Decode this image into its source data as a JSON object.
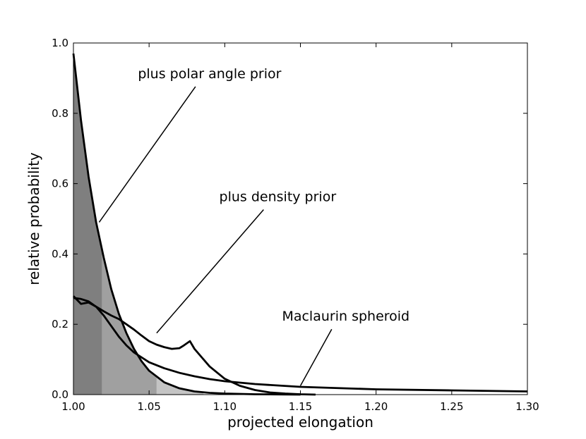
{
  "chart_data": {
    "type": "line",
    "xlabel": "projected elongation",
    "ylabel": "relative probability",
    "xlim": [
      1.0,
      1.3
    ],
    "ylim": [
      0.0,
      1.0
    ],
    "grid": false,
    "x_ticks": [
      "1.00",
      "1.05",
      "1.10",
      "1.15",
      "1.20",
      "1.25",
      "1.30"
    ],
    "y_ticks": [
      "0.0",
      "0.2",
      "0.4",
      "0.6",
      "0.8",
      "1.0"
    ],
    "series": [
      {
        "name": "plus polar angle prior",
        "x": [
          1.0,
          1.005,
          1.01,
          1.015,
          1.02,
          1.025,
          1.03,
          1.035,
          1.04,
          1.045,
          1.05,
          1.06,
          1.07,
          1.08,
          1.09,
          1.1,
          1.12,
          1.15
        ],
        "y": [
          0.97,
          0.78,
          0.62,
          0.49,
          0.39,
          0.3,
          0.23,
          0.175,
          0.13,
          0.095,
          0.068,
          0.035,
          0.018,
          0.009,
          0.005,
          0.003,
          0.001,
          0.0
        ]
      },
      {
        "name": "plus density prior",
        "x": [
          1.0,
          1.005,
          1.01,
          1.015,
          1.02,
          1.025,
          1.03,
          1.035,
          1.04,
          1.045,
          1.05,
          1.055,
          1.06,
          1.065,
          1.07,
          1.073,
          1.077,
          1.08,
          1.085,
          1.09,
          1.1,
          1.11,
          1.12,
          1.13,
          1.14,
          1.15,
          1.16
        ],
        "y": [
          0.28,
          0.258,
          0.262,
          0.25,
          0.237,
          0.225,
          0.215,
          0.2,
          0.185,
          0.168,
          0.152,
          0.142,
          0.135,
          0.13,
          0.132,
          0.14,
          0.152,
          0.13,
          0.105,
          0.08,
          0.045,
          0.025,
          0.013,
          0.006,
          0.003,
          0.001,
          0.0
        ]
      },
      {
        "name": "Maclaurin spheroid",
        "x": [
          1.0,
          1.005,
          1.01,
          1.015,
          1.02,
          1.025,
          1.03,
          1.035,
          1.04,
          1.05,
          1.06,
          1.07,
          1.08,
          1.09,
          1.1,
          1.12,
          1.15,
          1.2,
          1.25,
          1.3
        ],
        "y": [
          0.275,
          0.272,
          0.265,
          0.25,
          0.225,
          0.195,
          0.165,
          0.14,
          0.12,
          0.092,
          0.075,
          0.062,
          0.052,
          0.044,
          0.038,
          0.03,
          0.022,
          0.015,
          0.012,
          0.009
        ]
      }
    ],
    "shaded_regions": [
      {
        "x_range": [
          1.0,
          1.019
        ],
        "color": "#7f7f7f"
      },
      {
        "x_range": [
          1.019,
          1.055
        ],
        "color": "#a0a0a0"
      },
      {
        "x_range": [
          1.055,
          1.086
        ],
        "color": "#c4c4c4"
      }
    ],
    "annotations": [
      {
        "text": "plus polar angle prior",
        "text_x": 1.09,
        "text_y": 0.9,
        "arrow_to": [
          1.017,
          0.49
        ]
      },
      {
        "text": "plus density prior",
        "text_x": 1.135,
        "text_y": 0.55,
        "arrow_to": [
          1.055,
          0.175
        ]
      },
      {
        "text": "Maclaurin spheroid",
        "text_x": 1.18,
        "text_y": 0.21,
        "arrow_to": [
          1.15,
          0.025
        ]
      }
    ]
  }
}
